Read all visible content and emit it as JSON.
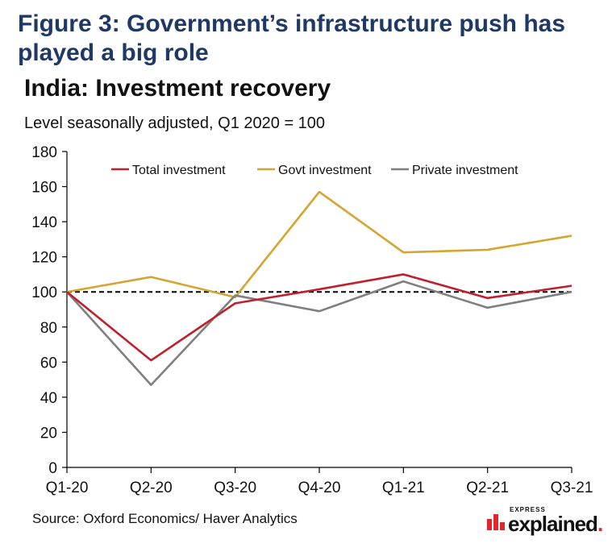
{
  "figure_title": "Figure 3: Government’s infrastructure push has played a big role",
  "chart_title": "India: Investment recovery",
  "subtitle": "Level seasonally adjusted, Q1 2020 = 100",
  "source": "Source: Oxford Economics/ Haver Analytics",
  "brand": {
    "small": "EXPRESS",
    "main": "explained",
    "dot": "."
  },
  "colors": {
    "total": "#c0202e",
    "govt": "#d4a530",
    "private": "#7f7f7f",
    "reference": "#000000",
    "axis": "#000000",
    "brand": "#e3262d"
  },
  "chart_data": {
    "type": "line",
    "categories": [
      "Q1-20",
      "Q2-20",
      "Q3-20",
      "Q4-20",
      "Q1-21",
      "Q2-21",
      "Q3-21"
    ],
    "series": [
      {
        "name": "Total investment",
        "values": [
          100,
          61,
          93.5,
          101.5,
          110,
          96.5,
          103.5
        ]
      },
      {
        "name": "Govt investment",
        "values": [
          100,
          108.5,
          97,
          157,
          122.5,
          124,
          132
        ]
      },
      {
        "name": "Private investment",
        "values": [
          100,
          47,
          98,
          89,
          106,
          91,
          100
        ]
      }
    ],
    "reference_line": {
      "value": 100,
      "style": "dashed"
    },
    "ylim": [
      0,
      180
    ],
    "yticks": [
      "0",
      "20",
      "40",
      "60",
      "80",
      "100",
      "120",
      "140",
      "160",
      "180"
    ],
    "grid": false,
    "legend_position": "top"
  }
}
